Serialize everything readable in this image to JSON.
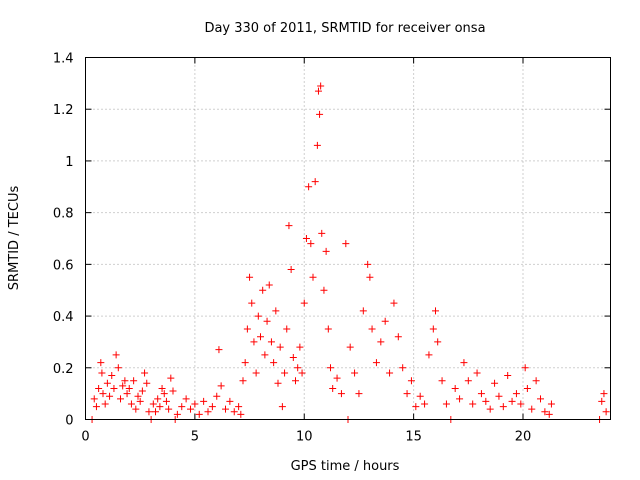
{
  "chart_data": {
    "type": "scatter",
    "title": "Day 330 of 2011, SRMTID for receiver onsa",
    "xlabel": "GPS time / hours",
    "ylabel": "SRMTID / TECUs",
    "xlim": [
      0,
      24
    ],
    "ylim": [
      0,
      1.4
    ],
    "xticks": [
      0,
      5,
      10,
      15,
      20
    ],
    "xtick_labels": [
      "0",
      "5",
      "10",
      "15",
      "20"
    ],
    "yticks": [
      0,
      0.2,
      0.4,
      0.6,
      0.8,
      1.0,
      1.2,
      1.4
    ],
    "ytick_labels": [
      "0",
      "0.2",
      "0.4",
      "0.6",
      "0.8",
      "1",
      "1.2",
      "1.4"
    ],
    "grid": true,
    "marker": "+",
    "color": "#ff0000",
    "series": [
      {
        "points": [
          [
            0.3,
            0.0
          ],
          [
            0.4,
            0.08
          ],
          [
            0.5,
            0.05
          ],
          [
            0.6,
            0.12
          ],
          [
            0.7,
            0.22
          ],
          [
            0.75,
            0.18
          ],
          [
            0.8,
            0.1
          ],
          [
            0.9,
            0.06
          ],
          [
            1.0,
            0.14
          ],
          [
            1.1,
            0.09
          ],
          [
            1.2,
            0.17
          ],
          [
            1.3,
            0.12
          ],
          [
            1.4,
            0.25
          ],
          [
            1.5,
            0.2
          ],
          [
            1.6,
            0.08
          ],
          [
            1.7,
            0.13
          ],
          [
            1.8,
            0.15
          ],
          [
            1.9,
            0.1
          ],
          [
            2.0,
            0.12
          ],
          [
            2.1,
            0.06
          ],
          [
            2.2,
            0.15
          ],
          [
            2.3,
            0.04
          ],
          [
            2.4,
            0.09
          ],
          [
            2.5,
            0.07
          ],
          [
            2.6,
            0.11
          ],
          [
            2.7,
            0.18
          ],
          [
            2.8,
            0.14
          ],
          [
            2.9,
            0.03
          ],
          [
            3.0,
            0.0
          ],
          [
            3.1,
            0.06
          ],
          [
            3.2,
            0.03
          ],
          [
            3.3,
            0.08
          ],
          [
            3.4,
            0.05
          ],
          [
            3.5,
            0.12
          ],
          [
            3.6,
            0.1
          ],
          [
            3.7,
            0.07
          ],
          [
            3.8,
            0.04
          ],
          [
            3.9,
            0.16
          ],
          [
            4.0,
            0.11
          ],
          [
            4.1,
            0.0
          ],
          [
            4.2,
            0.02
          ],
          [
            4.4,
            0.05
          ],
          [
            4.6,
            0.08
          ],
          [
            4.8,
            0.04
          ],
          [
            5.0,
            0.06
          ],
          [
            5.2,
            0.02
          ],
          [
            5.4,
            0.07
          ],
          [
            5.6,
            0.03
          ],
          [
            5.8,
            0.05
          ],
          [
            6.0,
            0.09
          ],
          [
            6.1,
            0.27
          ],
          [
            6.2,
            0.13
          ],
          [
            6.4,
            0.04
          ],
          [
            6.6,
            0.07
          ],
          [
            6.8,
            0.03
          ],
          [
            7.0,
            0.05
          ],
          [
            7.1,
            0.02
          ],
          [
            7.2,
            0.15
          ],
          [
            7.3,
            0.22
          ],
          [
            7.4,
            0.35
          ],
          [
            7.5,
            0.55
          ],
          [
            7.6,
            0.45
          ],
          [
            7.7,
            0.3
          ],
          [
            7.8,
            0.18
          ],
          [
            7.9,
            0.4
          ],
          [
            8.0,
            0.32
          ],
          [
            8.1,
            0.5
          ],
          [
            8.2,
            0.25
          ],
          [
            8.3,
            0.38
          ],
          [
            8.4,
            0.52
          ],
          [
            8.5,
            0.3
          ],
          [
            8.6,
            0.22
          ],
          [
            8.7,
            0.42
          ],
          [
            8.8,
            0.14
          ],
          [
            8.9,
            0.28
          ],
          [
            9.0,
            0.05
          ],
          [
            9.1,
            0.18
          ],
          [
            9.2,
            0.35
          ],
          [
            9.3,
            0.75
          ],
          [
            9.4,
            0.58
          ],
          [
            9.5,
            0.24
          ],
          [
            9.6,
            0.15
          ],
          [
            9.7,
            0.2
          ],
          [
            9.8,
            0.28
          ],
          [
            9.9,
            0.18
          ],
          [
            10.0,
            0.45
          ],
          [
            10.1,
            0.7
          ],
          [
            10.2,
            0.9
          ],
          [
            10.3,
            0.68
          ],
          [
            10.4,
            0.55
          ],
          [
            10.5,
            0.92
          ],
          [
            10.6,
            1.06
          ],
          [
            10.65,
            1.27
          ],
          [
            10.7,
            1.18
          ],
          [
            10.75,
            1.29
          ],
          [
            10.8,
            0.72
          ],
          [
            10.9,
            0.5
          ],
          [
            11.0,
            0.65
          ],
          [
            11.1,
            0.35
          ],
          [
            11.2,
            0.2
          ],
          [
            11.3,
            0.12
          ],
          [
            11.5,
            0.16
          ],
          [
            11.7,
            0.1
          ],
          [
            11.9,
            0.68
          ],
          [
            12.0,
            0.0
          ],
          [
            12.1,
            0.28
          ],
          [
            12.3,
            0.18
          ],
          [
            12.5,
            0.1
          ],
          [
            12.7,
            0.42
          ],
          [
            12.9,
            0.6
          ],
          [
            13.0,
            0.55
          ],
          [
            13.1,
            0.35
          ],
          [
            13.3,
            0.22
          ],
          [
            13.5,
            0.3
          ],
          [
            13.7,
            0.38
          ],
          [
            13.9,
            0.18
          ],
          [
            14.1,
            0.45
          ],
          [
            14.3,
            0.32
          ],
          [
            14.5,
            0.2
          ],
          [
            14.7,
            0.1
          ],
          [
            14.9,
            0.15
          ],
          [
            15.1,
            0.05
          ],
          [
            15.3,
            0.09
          ],
          [
            15.5,
            0.06
          ],
          [
            15.7,
            0.25
          ],
          [
            15.9,
            0.35
          ],
          [
            16.0,
            0.42
          ],
          [
            16.1,
            0.3
          ],
          [
            16.3,
            0.15
          ],
          [
            16.5,
            0.06
          ],
          [
            16.7,
            0.0
          ],
          [
            16.9,
            0.12
          ],
          [
            17.1,
            0.08
          ],
          [
            17.3,
            0.22
          ],
          [
            17.5,
            0.15
          ],
          [
            17.7,
            0.06
          ],
          [
            17.9,
            0.18
          ],
          [
            18.1,
            0.1
          ],
          [
            18.3,
            0.07
          ],
          [
            18.5,
            0.04
          ],
          [
            18.7,
            0.14
          ],
          [
            18.9,
            0.09
          ],
          [
            19.1,
            0.05
          ],
          [
            19.3,
            0.17
          ],
          [
            19.5,
            0.07
          ],
          [
            19.7,
            0.1
          ],
          [
            19.9,
            0.06
          ],
          [
            20.1,
            0.2
          ],
          [
            20.2,
            0.12
          ],
          [
            20.4,
            0.04
          ],
          [
            20.6,
            0.15
          ],
          [
            20.8,
            0.08
          ],
          [
            21.0,
            0.03
          ],
          [
            21.2,
            0.02
          ],
          [
            21.3,
            0.06
          ],
          [
            23.5,
            0.0
          ],
          [
            23.6,
            0.07
          ],
          [
            23.7,
            0.1
          ],
          [
            23.8,
            0.03
          ]
        ]
      }
    ]
  }
}
